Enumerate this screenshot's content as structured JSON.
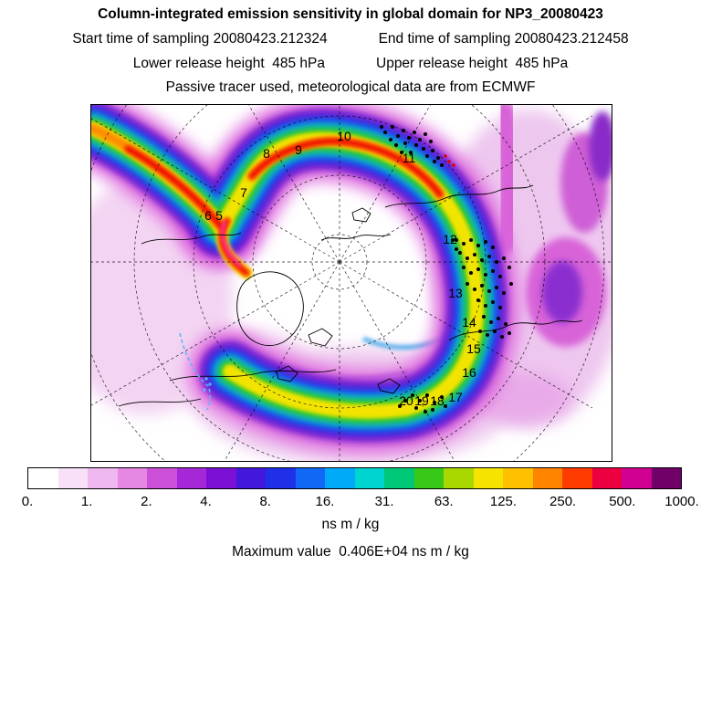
{
  "header": {
    "title": "Column-integrated emission sensitivity in global domain for NP3_20080423",
    "start_time": "Start time of sampling 20080423.212324",
    "end_time": "End time of sampling 20080423.212458",
    "lower_release": "Lower release height  485 hPa",
    "upper_release": "Upper release height  485 hPa",
    "tracer_line": "Passive tracer used, meteorological data are from ECMWF"
  },
  "map": {
    "track_labels": [
      "5",
      "6",
      "7",
      "8",
      "9",
      "10",
      "11",
      "12",
      "13",
      "14",
      "15",
      "16",
      "17",
      "18",
      "19",
      "20"
    ]
  },
  "colorbar": {
    "tick_labels": [
      "0.",
      "1.",
      "2.",
      "4.",
      "8.",
      "16.",
      "31.",
      "63.",
      "125.",
      "250.",
      "500.",
      "1000."
    ],
    "segment_colors": [
      "#ffffff",
      "#f8e0f8",
      "#f0b8f0",
      "#e488e4",
      "#cc50d8",
      "#a428d8",
      "#7a10d4",
      "#4418dc",
      "#2030e8",
      "#1068f4",
      "#00aaf8",
      "#00d4d0",
      "#00c878",
      "#38c818",
      "#a8d800",
      "#f4e400",
      "#ffc000",
      "#ff8400",
      "#ff3c00",
      "#ec0040",
      "#d00090",
      "#700068"
    ],
    "unit": "ns m / kg"
  },
  "footer": {
    "max_value": "Maximum value  0.406E+04 ns m / kg"
  },
  "chart_data": {
    "type": "heatmap",
    "title": "Column-integrated emission sensitivity in global domain for NP3_20080423",
    "colorbar_levels": [
      0,
      1,
      2,
      4,
      8,
      16,
      31,
      63,
      125,
      250,
      500,
      1000
    ],
    "colorbar_unit": "ns m / kg",
    "maximum_value": "0.406E+04",
    "track_point_numbers": [
      5,
      6,
      7,
      8,
      9,
      10,
      11,
      12,
      13,
      14,
      15,
      16,
      17,
      18,
      19,
      20
    ],
    "legend_position": "bottom",
    "projection_hint": "north polar view with dashed graticule"
  }
}
